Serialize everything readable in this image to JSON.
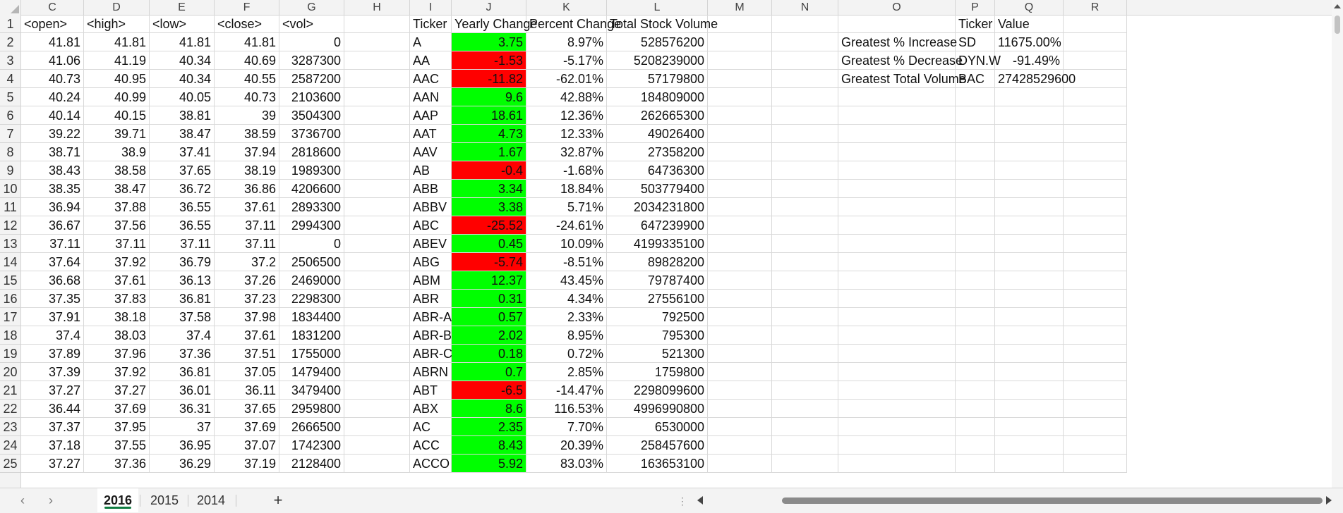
{
  "columns": [
    "C",
    "D",
    "E",
    "F",
    "G",
    "H",
    "I",
    "J",
    "K",
    "L",
    "M",
    "N",
    "O",
    "P",
    "Q",
    "R"
  ],
  "rows": [
    {
      "num": "1",
      "C": "<open>",
      "D": "<high>",
      "E": "<low>",
      "F": "<close>",
      "G": "<vol>",
      "I": "Ticker",
      "J": "Yearly Change",
      "K": "Percent Change",
      "L": "Total Stock Volume",
      "O": "",
      "P": "Ticker",
      "Q": "Value",
      "jColor": "none",
      "hdr": true
    },
    {
      "num": "2",
      "C": "41.81",
      "D": "41.81",
      "E": "41.81",
      "F": "41.81",
      "G": "0",
      "I": "A",
      "J": "3.75",
      "K": "8.97%",
      "L": "528576200",
      "O": "Greatest % Increase",
      "P": "SD",
      "Q": "11675.00%",
      "jColor": "green"
    },
    {
      "num": "3",
      "C": "41.06",
      "D": "41.19",
      "E": "40.34",
      "F": "40.69",
      "G": "3287300",
      "I": "AA",
      "J": "-1.53",
      "K": "-5.17%",
      "L": "5208239000",
      "O": "Greatest % Decrease",
      "P": "DYN.W",
      "Q": "-91.49%",
      "jColor": "red"
    },
    {
      "num": "4",
      "C": "40.73",
      "D": "40.95",
      "E": "40.34",
      "F": "40.55",
      "G": "2587200",
      "I": "AAC",
      "J": "-11.82",
      "K": "-62.01%",
      "L": "57179800",
      "O": "Greatest Total Volume",
      "P": "BAC",
      "Q": "27428529600",
      "jColor": "red"
    },
    {
      "num": "5",
      "C": "40.24",
      "D": "40.99",
      "E": "40.05",
      "F": "40.73",
      "G": "2103600",
      "I": "AAN",
      "J": "9.6",
      "K": "42.88%",
      "L": "184809000",
      "jColor": "green"
    },
    {
      "num": "6",
      "C": "40.14",
      "D": "40.15",
      "E": "38.81",
      "F": "39",
      "G": "3504300",
      "I": "AAP",
      "J": "18.61",
      "K": "12.36%",
      "L": "262665300",
      "jColor": "green"
    },
    {
      "num": "7",
      "C": "39.22",
      "D": "39.71",
      "E": "38.47",
      "F": "38.59",
      "G": "3736700",
      "I": "AAT",
      "J": "4.73",
      "K": "12.33%",
      "L": "49026400",
      "jColor": "green"
    },
    {
      "num": "8",
      "C": "38.71",
      "D": "38.9",
      "E": "37.41",
      "F": "37.94",
      "G": "2818600",
      "I": "AAV",
      "J": "1.67",
      "K": "32.87%",
      "L": "27358200",
      "jColor": "green"
    },
    {
      "num": "9",
      "C": "38.43",
      "D": "38.58",
      "E": "37.65",
      "F": "38.19",
      "G": "1989300",
      "I": "AB",
      "J": "-0.4",
      "K": "-1.68%",
      "L": "64736300",
      "jColor": "red"
    },
    {
      "num": "10",
      "C": "38.35",
      "D": "38.47",
      "E": "36.72",
      "F": "36.86",
      "G": "4206600",
      "I": "ABB",
      "J": "3.34",
      "K": "18.84%",
      "L": "503779400",
      "jColor": "green"
    },
    {
      "num": "11",
      "C": "36.94",
      "D": "37.88",
      "E": "36.55",
      "F": "37.61",
      "G": "2893300",
      "I": "ABBV",
      "J": "3.38",
      "K": "5.71%",
      "L": "2034231800",
      "jColor": "green"
    },
    {
      "num": "12",
      "C": "36.67",
      "D": "37.56",
      "E": "36.55",
      "F": "37.11",
      "G": "2994300",
      "I": "ABC",
      "J": "-25.52",
      "K": "-24.61%",
      "L": "647239900",
      "jColor": "red"
    },
    {
      "num": "13",
      "C": "37.11",
      "D": "37.11",
      "E": "37.11",
      "F": "37.11",
      "G": "0",
      "I": "ABEV",
      "J": "0.45",
      "K": "10.09%",
      "L": "4199335100",
      "jColor": "green"
    },
    {
      "num": "14",
      "C": "37.64",
      "D": "37.92",
      "E": "36.79",
      "F": "37.2",
      "G": "2506500",
      "I": "ABG",
      "J": "-5.74",
      "K": "-8.51%",
      "L": "89828200",
      "jColor": "red"
    },
    {
      "num": "15",
      "C": "36.68",
      "D": "37.61",
      "E": "36.13",
      "F": "37.26",
      "G": "2469000",
      "I": "ABM",
      "J": "12.37",
      "K": "43.45%",
      "L": "79787400",
      "jColor": "green"
    },
    {
      "num": "16",
      "C": "37.35",
      "D": "37.83",
      "E": "36.81",
      "F": "37.23",
      "G": "2298300",
      "I": "ABR",
      "J": "0.31",
      "K": "4.34%",
      "L": "27556100",
      "jColor": "green"
    },
    {
      "num": "17",
      "C": "37.91",
      "D": "38.18",
      "E": "37.58",
      "F": "37.98",
      "G": "1834400",
      "I": "ABR-A",
      "J": "0.57",
      "K": "2.33%",
      "L": "792500",
      "jColor": "green"
    },
    {
      "num": "18",
      "C": "37.4",
      "D": "38.03",
      "E": "37.4",
      "F": "37.61",
      "G": "1831200",
      "I": "ABR-B",
      "J": "2.02",
      "K": "8.95%",
      "L": "795300",
      "jColor": "green"
    },
    {
      "num": "19",
      "C": "37.89",
      "D": "37.96",
      "E": "37.36",
      "F": "37.51",
      "G": "1755000",
      "I": "ABR-C",
      "J": "0.18",
      "K": "0.72%",
      "L": "521300",
      "jColor": "green"
    },
    {
      "num": "20",
      "C": "37.39",
      "D": "37.92",
      "E": "36.81",
      "F": "37.05",
      "G": "1479400",
      "I": "ABRN",
      "J": "0.7",
      "K": "2.85%",
      "L": "1759800",
      "jColor": "green"
    },
    {
      "num": "21",
      "C": "37.27",
      "D": "37.27",
      "E": "36.01",
      "F": "36.11",
      "G": "3479400",
      "I": "ABT",
      "J": "-6.5",
      "K": "-14.47%",
      "L": "2298099600",
      "jColor": "red"
    },
    {
      "num": "22",
      "C": "36.44",
      "D": "37.69",
      "E": "36.31",
      "F": "37.65",
      "G": "2959800",
      "I": "ABX",
      "J": "8.6",
      "K": "116.53%",
      "L": "4996990800",
      "jColor": "green"
    },
    {
      "num": "23",
      "C": "37.37",
      "D": "37.95",
      "E": "37",
      "F": "37.69",
      "G": "2666500",
      "I": "AC",
      "J": "2.35",
      "K": "7.70%",
      "L": "6530000",
      "jColor": "green"
    },
    {
      "num": "24",
      "C": "37.18",
      "D": "37.55",
      "E": "36.95",
      "F": "37.07",
      "G": "1742300",
      "I": "ACC",
      "J": "8.43",
      "K": "20.39%",
      "L": "258457600",
      "jColor": "green"
    },
    {
      "num": "25",
      "C": "37.27",
      "D": "37.36",
      "E": "36.29",
      "F": "37.19",
      "G": "2128400",
      "I": "ACCO",
      "J": "5.92",
      "K": "83.03%",
      "L": "163653100",
      "jColor": "green"
    }
  ],
  "colors": {
    "positive": "#00ff00",
    "negative": "#ff0000",
    "active_tab_accent": "#107c41"
  },
  "tabs": {
    "items": [
      "2016",
      "2015",
      "2014"
    ],
    "active": "2016",
    "add_label": "+"
  },
  "nav": {
    "prev_icon": "chevron-left-icon",
    "next_icon": "chevron-right-icon"
  }
}
